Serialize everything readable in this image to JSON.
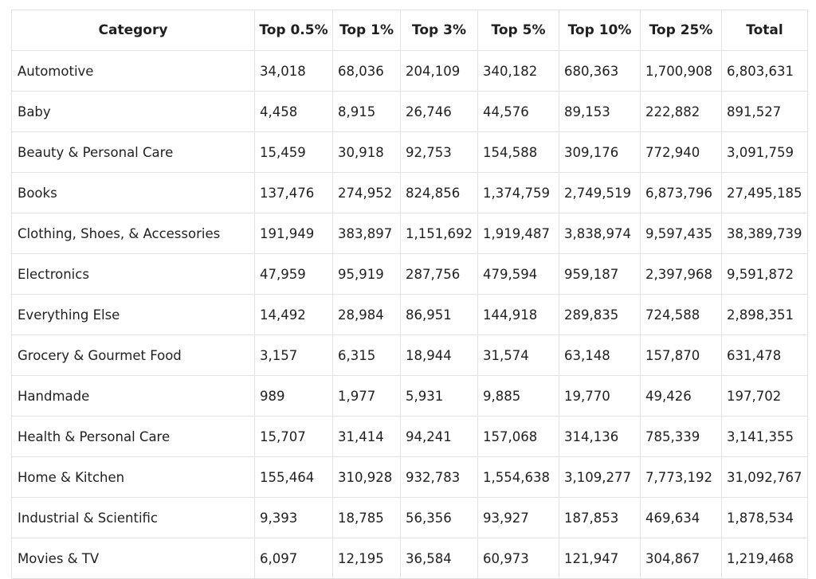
{
  "table": {
    "headers": [
      "Category",
      "Top 0.5%",
      "Top 1%",
      "Top 3%",
      "Top 5%",
      "Top 10%",
      "Top 25%",
      "Total"
    ],
    "rows": [
      [
        "Automotive",
        "34,018",
        "68,036",
        "204,109",
        "340,182",
        "680,363",
        "1,700,908",
        "6,803,631"
      ],
      [
        "Baby",
        "4,458",
        "8,915",
        "26,746",
        "44,576",
        "89,153",
        "222,882",
        "891,527"
      ],
      [
        "Beauty & Personal Care",
        "15,459",
        "30,918",
        "92,753",
        "154,588",
        "309,176",
        "772,940",
        "3,091,759"
      ],
      [
        "Books",
        "137,476",
        "274,952",
        "824,856",
        "1,374,759",
        "2,749,519",
        "6,873,796",
        "27,495,185"
      ],
      [
        "Clothing, Shoes, & Accessories",
        "191,949",
        "383,897",
        "1,151,692",
        "1,919,487",
        "3,838,974",
        "9,597,435",
        "38,389,739"
      ],
      [
        "Electronics",
        "47,959",
        "95,919",
        "287,756",
        "479,594",
        "959,187",
        "2,397,968",
        "9,591,872"
      ],
      [
        "Everything Else",
        "14,492",
        "28,984",
        "86,951",
        "144,918",
        "289,835",
        "724,588",
        "2,898,351"
      ],
      [
        "Grocery & Gourmet Food",
        "3,157",
        "6,315",
        "18,944",
        "31,574",
        "63,148",
        "157,870",
        "631,478"
      ],
      [
        "Handmade",
        "989",
        "1,977",
        "5,931",
        "9,885",
        "19,770",
        "49,426",
        "197,702"
      ],
      [
        "Health & Personal Care",
        "15,707",
        "31,414",
        "94,241",
        "157,068",
        "314,136",
        "785,339",
        "3,141,355"
      ],
      [
        "Home & Kitchen",
        "155,464",
        "310,928",
        "932,783",
        "1,554,638",
        "3,109,277",
        "7,773,192",
        "31,092,767"
      ],
      [
        "Industrial & Scientific",
        "9,393",
        "18,785",
        "56,356",
        "93,927",
        "187,853",
        "469,634",
        "1,878,534"
      ],
      [
        "Movies & TV",
        "6,097",
        "12,195",
        "36,584",
        "60,973",
        "121,947",
        "304,867",
        "1,219,468"
      ]
    ]
  }
}
